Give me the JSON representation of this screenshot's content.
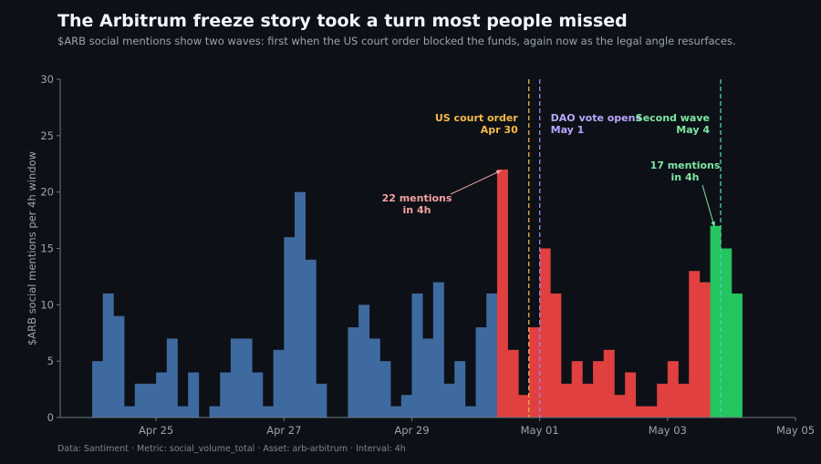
{
  "header": {
    "title": "The Arbitrum freeze story took a turn most people missed",
    "subtitle": "$ARB social mentions show two waves: first when the US court order blocked the funds, again now as the legal angle resurfaces."
  },
  "footer": "Data: Santiment  ·  Metric: social_volume_total  ·  Asset: arb-arbitrum  ·  Interval: 4h",
  "colors": {
    "background": "#0d1117",
    "blue": "#3f6aa0",
    "red": "#e0403f",
    "green": "#22c55e",
    "court_line": "#f0b24c",
    "dao_line": "#9a86f0",
    "wave_line": "#4fd1a5",
    "peak_label": "#f2a0a0",
    "court_label": "#f5b94a",
    "dao_label": "#b9a6ff",
    "wave_label": "#7fe6a4"
  },
  "chart_data": {
    "type": "bar",
    "x_unit": "4h bins starting Apr 24 12:00",
    "start": "Apr 24 12:00",
    "interval_hours": 4,
    "ylabel": "$ARB social mentions per 4h window",
    "ylim": [
      0,
      30
    ],
    "yticks": [
      0,
      5,
      10,
      15,
      20,
      25,
      30
    ],
    "xticks": [
      {
        "label": "Apr 25",
        "day": 1
      },
      {
        "label": "Apr 27",
        "day": 3
      },
      {
        "label": "Apr 29",
        "day": 5
      },
      {
        "label": "May 01",
        "day": 7
      },
      {
        "label": "May 03",
        "day": 9
      },
      {
        "label": "May 05",
        "day": 11
      }
    ],
    "grid": false,
    "segments": [
      {
        "name": "before",
        "color": "blue",
        "values": [
          5,
          11,
          9,
          1,
          3,
          3,
          4,
          7,
          1,
          4,
          0,
          1,
          4,
          7,
          7,
          4,
          1,
          6,
          16,
          20,
          14,
          3,
          0,
          0,
          8,
          10,
          7,
          5,
          1,
          2,
          11,
          7,
          12,
          3,
          5,
          1,
          8,
          11
        ]
      },
      {
        "name": "first wave",
        "color": "red",
        "values": [
          22,
          6,
          2,
          8,
          15,
          11,
          3,
          5,
          3,
          5,
          6,
          2,
          4,
          1,
          1,
          3,
          5,
          3,
          13,
          12
        ]
      },
      {
        "name": "second wave",
        "color": "green",
        "values": [
          17,
          15,
          11
        ]
      }
    ],
    "events": [
      {
        "label1": "US court order",
        "label2": "Apr 30",
        "day": 6.83,
        "color": "court_line",
        "text_color": "court_label",
        "align": "end"
      },
      {
        "label1": "DAO vote opens",
        "label2": "May 1",
        "day": 7.0,
        "color": "dao_line",
        "text_color": "dao_label",
        "align": "start"
      },
      {
        "label1": "Second wave",
        "label2": "May 4",
        "day": 9.83,
        "color": "wave_line",
        "text_color": "wave_label",
        "align": "end"
      }
    ],
    "annotations": [
      {
        "line1": "22 mentions",
        "line2": "in 4h",
        "target_index": 38,
        "target_value": 22,
        "color": "peak_label"
      },
      {
        "line1": "17 mentions",
        "line2": "in 4h",
        "target_index": 58,
        "target_value": 17,
        "color": "wave_label"
      }
    ]
  }
}
